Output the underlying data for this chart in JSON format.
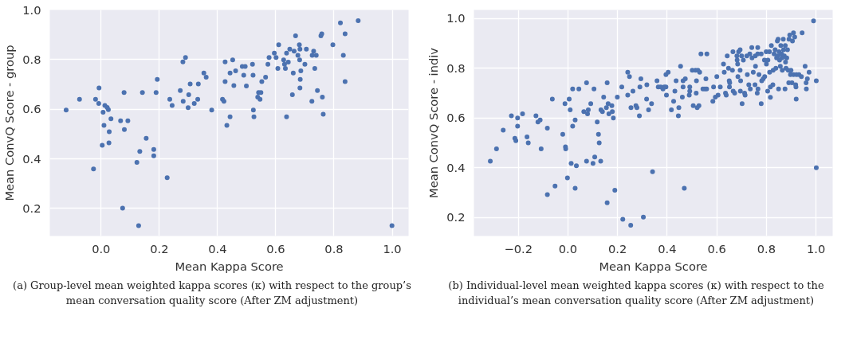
{
  "chart_data": [
    {
      "type": "scatter",
      "xlabel": "Mean Kappa Score",
      "ylabel": "Mean ConvQ Score - group",
      "xlim": [
        -0.176,
        1.056
      ],
      "ylim": [
        0.089,
        1.0
      ],
      "xticks": [
        {
          "value": 0,
          "label": "0.0"
        },
        0.2,
        0.4,
        0.6,
        0.8,
        {
          "value": 1,
          "label": "1.0"
        }
      ],
      "yticks": [
        0.2,
        0.4,
        0.6,
        0.8,
        {
          "value": 1,
          "label": "1.0"
        }
      ],
      "grid": true,
      "marker": "circle",
      "annotations": [
        "(a) Group-level mean weighted kappa scores (κ) with respect to the group’s mean conversation quality score (After ZM adjustment)"
      ],
      "series": [
        {
          "color": "#4c72b0",
          "x": [
            -0.12,
            -0.074,
            -0.019,
            -0.007,
            -0.008,
            -0.026,
            0.013,
            0.021,
            0.025,
            0.007,
            0.034,
            0.01,
            0.028,
            0.004,
            0.027,
            0.079,
            0.067,
            0.092,
            0.08,
            0.074,
            0.142,
            0.155,
            0.133,
            0.123,
            0.129,
            0.181,
            0.181,
            0.189,
            0.193,
            0.227,
            0.236,
            0.244,
            0.272,
            0.281,
            0.29,
            0.282,
            0.299,
            0.301,
            0.306,
            0.32,
            0.332,
            0.334,
            0.353,
            0.361,
            0.38,
            0.417,
            0.422,
            0.426,
            0.426,
            0.432,
            0.443,
            0.443,
            0.452,
            0.456,
            0.462,
            0.485,
            0.495,
            0.49,
            0.499,
            0.52,
            0.522,
            0.523,
            0.525,
            0.538,
            0.541,
            0.549,
            0.546,
            0.552,
            0.565,
            0.573,
            0.577,
            0.595,
            0.601,
            0.607,
            0.61,
            0.627,
            0.63,
            0.633,
            0.637,
            0.637,
            0.643,
            0.648,
            0.657,
            0.66,
            0.663,
            0.668,
            0.676,
            0.681,
            0.683,
            0.682,
            0.686,
            0.684,
            0.683,
            0.7,
            0.705,
            0.725,
            0.73,
            0.739,
            0.724,
            0.734,
            0.743,
            0.755,
            0.758,
            0.76,
            0.763,
            0.796,
            0.822,
            0.832,
            0.838,
            0.838,
            0.883,
            0.999
          ],
          "values": [
            0.597,
            0.64,
            0.64,
            0.686,
            0.623,
            0.359,
            0.615,
            0.607,
            0.598,
            0.588,
            0.561,
            0.535,
            0.509,
            0.455,
            0.464,
            0.667,
            0.553,
            0.553,
            0.518,
            0.201,
            0.667,
            0.483,
            0.43,
            0.386,
            0.131,
            0.438,
            0.412,
            0.667,
            0.72,
            0.324,
            0.64,
            0.615,
            0.675,
            0.791,
            0.808,
            0.632,
            0.606,
            0.658,
            0.702,
            0.623,
            0.64,
            0.702,
            0.746,
            0.729,
            0.597,
            0.64,
            0.632,
            0.711,
            0.791,
            0.535,
            0.569,
            0.746,
            0.799,
            0.695,
            0.755,
            0.772,
            0.772,
            0.737,
            0.694,
            0.781,
            0.737,
            0.597,
            0.569,
            0.649,
            0.667,
            0.667,
            0.64,
            0.711,
            0.729,
            0.781,
            0.808,
            0.826,
            0.808,
            0.764,
            0.86,
            0.799,
            0.781,
            0.764,
            0.826,
            0.569,
            0.79,
            0.842,
            0.658,
            0.746,
            0.834,
            0.896,
            0.817,
            0.86,
            0.842,
            0.799,
            0.755,
            0.72,
            0.686,
            0.781,
            0.842,
            0.817,
            0.834,
            0.817,
            0.632,
            0.764,
            0.675,
            0.896,
            0.904,
            0.649,
            0.58,
            0.86,
            0.948,
            0.817,
            0.904,
            0.711,
            0.957,
            0.131
          ]
        }
      ]
    },
    {
      "type": "scatter",
      "xlabel": "Mean Kappa Score",
      "ylabel": "Mean ConvQ Score - indiv",
      "xlim": [
        -0.379,
        1.067
      ],
      "ylim": [
        0.125,
        1.035
      ],
      "xticks": [
        {
          "value": -0.2,
          "label": "−0.2"
        },
        {
          "value": 0,
          "label": "0.0"
        },
        0.2,
        0.4,
        0.6,
        0.8,
        {
          "value": 1,
          "label": "1.0"
        }
      ],
      "yticks": [
        0.2,
        0.4,
        0.6,
        0.8,
        {
          "value": 1,
          "label": "1.0"
        }
      ],
      "grid": true,
      "marker": "circle",
      "annotations": [
        "(b) Individual-level mean weighted kappa scores (κ) with respect to the individual’s mean conversation quality score (After ZM adjustment)"
      ],
      "series": [
        {
          "color": "#4c72b0",
          "x": [
            -0.313,
            -0.288,
            -0.261,
            -0.228,
            -0.214,
            -0.21,
            -0.203,
            -0.203,
            -0.183,
            -0.165,
            -0.16,
            -0.129,
            -0.121,
            -0.112,
            -0.108,
            -0.083,
            -0.083,
            -0.063,
            -0.052,
            -0.021,
            -0.012,
            -0.01,
            -0.009,
            -0.002,
            0.005,
            0.009,
            0.013,
            0.019,
            0.019,
            0.029,
            0.029,
            0.034,
            0.044,
            0.064,
            0.075,
            0.075,
            0.079,
            0.082,
            0.092,
            0.101,
            0.105,
            0.108,
            0.118,
            0.123,
            0.126,
            0.132,
            0.133,
            0.139,
            0.144,
            0.155,
            0.158,
            0.158,
            0.162,
            0.165,
            0.177,
            0.179,
            0.183,
            0.189,
            0.199,
            0.217,
            0.221,
            0.241,
            0.241,
            0.248,
            0.254,
            0.253,
            0.262,
            0.274,
            0.278,
            0.288,
            0.29,
            0.294,
            0.304,
            0.317,
            0.318,
            0.325,
            0.337,
            0.341,
            0.359,
            0.364,
            0.374,
            0.383,
            0.388,
            0.395,
            0.397,
            0.395,
            0.404,
            0.417,
            0.426,
            0.431,
            0.436,
            0.445,
            0.447,
            0.454,
            0.461,
            0.464,
            0.464,
            0.469,
            0.473,
            0.489,
            0.491,
            0.491,
            0.501,
            0.505,
            0.514,
            0.517,
            0.518,
            0.521,
            0.524,
            0.528,
            0.531,
            0.536,
            0.544,
            0.552,
            0.556,
            0.559,
            0.56,
            0.584,
            0.587,
            0.594,
            0.6,
            0.605,
            0.614,
            0.627,
            0.63,
            0.635,
            0.638,
            0.642,
            0.647,
            0.65,
            0.651,
            0.652,
            0.665,
            0.663,
            0.666,
            0.672,
            0.681,
            0.682,
            0.684,
            0.685,
            0.688,
            0.694,
            0.694,
            0.695,
            0.696,
            0.702,
            0.7,
            0.707,
            0.712,
            0.714,
            0.721,
            0.723,
            0.729,
            0.733,
            0.735,
            0.741,
            0.742,
            0.747,
            0.754,
            0.755,
            0.756,
            0.763,
            0.765,
            0.765,
            0.766,
            0.77,
            0.779,
            0.779,
            0.781,
            0.787,
            0.792,
            0.793,
            0.799,
            0.8,
            0.805,
            0.806,
            0.812,
            0.813,
            0.816,
            0.816,
            0.82,
            0.826,
            0.827,
            0.831,
            0.835,
            0.838,
            0.841,
            0.844,
            0.846,
            0.847,
            0.849,
            0.851,
            0.853,
            0.856,
            0.858,
            0.861,
            0.863,
            0.864,
            0.868,
            0.869,
            0.872,
            0.875,
            0.876,
            0.877,
            0.879,
            0.882,
            0.885,
            0.888,
            0.89,
            0.891,
            0.894,
            0.897,
            0.899,
            0.903,
            0.905,
            0.909,
            0.909,
            0.914,
            0.918,
            0.919,
            0.92,
            0.921,
            0.931,
            0.941,
            0.944,
            0.956,
            0.96,
            0.961,
            0.965,
            0.972,
            0.99,
            1.001,
            1.001
          ],
          "values": [
            0.426,
            0.476,
            0.551,
            0.609,
            0.518,
            0.509,
            0.6,
            0.567,
            0.617,
            0.524,
            0.5,
            0.609,
            0.584,
            0.592,
            0.476,
            0.559,
            0.292,
            0.676,
            0.326,
            0.534,
            0.658,
            0.484,
            0.476,
            0.359,
            0.676,
            0.633,
            0.417,
            0.717,
            0.567,
            0.592,
            0.317,
            0.408,
            0.717,
            0.626,
            0.742,
            0.426,
            0.617,
            0.633,
            0.658,
            0.417,
            0.717,
            0.443,
            0.584,
            0.534,
            0.5,
            0.426,
            0.633,
            0.626,
            0.684,
            0.642,
            0.742,
            0.259,
            0.658,
            0.617,
            0.65,
            0.626,
            0.6,
            0.309,
            0.684,
            0.725,
            0.192,
            0.784,
            0.692,
            0.767,
            0.642,
            0.168,
            0.708,
            0.65,
            0.642,
            0.609,
            0.725,
            0.758,
            0.201,
            0.676,
            0.734,
            0.633,
            0.658,
            0.384,
            0.75,
            0.725,
            0.725,
            0.717,
            0.725,
            0.725,
            0.692,
            0.775,
            0.784,
            0.633,
            0.667,
            0.708,
            0.75,
            0.609,
            0.642,
            0.808,
            0.684,
            0.75,
            0.725,
            0.317,
            0.758,
            0.692,
            0.725,
            0.708,
            0.792,
            0.65,
            0.792,
            0.7,
            0.75,
            0.642,
            0.792,
            0.65,
            0.784,
            0.858,
            0.717,
            0.717,
            0.758,
            0.717,
            0.858,
            0.667,
            0.725,
            0.684,
            0.767,
            0.692,
            0.725,
            0.817,
            0.784,
            0.7,
            0.692,
            0.85,
            0.8,
            0.75,
            0.725,
            0.742,
            0.867,
            0.792,
            0.708,
            0.7,
            0.85,
            0.833,
            0.817,
            0.767,
            0.867,
            0.875,
            0.792,
            0.708,
            0.75,
            0.658,
            0.85,
            0.833,
            0.7,
            0.692,
            0.85,
            0.775,
            0.734,
            0.858,
            0.717,
            0.884,
            0.842,
            0.784,
            0.734,
            0.85,
            0.808,
            0.7,
            0.884,
            0.858,
            0.717,
            0.775,
            0.658,
            0.858,
            0.75,
            0.758,
            0.833,
            0.767,
            0.867,
            0.817,
            0.708,
            0.833,
            0.867,
            0.784,
            0.683,
            0.725,
            0.892,
            0.734,
            0.792,
            0.858,
            0.875,
            0.8,
            0.842,
            0.91,
            0.85,
            0.917,
            0.717,
            0.867,
            0.833,
            0.808,
            0.892,
            0.858,
            0.842,
            0.792,
            0.917,
            0.875,
            0.85,
            0.717,
            0.892,
            0.825,
            0.8,
            0.842,
            0.875,
            0.792,
            0.742,
            0.917,
            0.934,
            0.775,
            0.792,
            0.742,
            0.91,
            0.943,
            0.775,
            0.926,
            0.734,
            0.725,
            0.676,
            0.775,
            0.775,
            0.767,
            0.943,
            0.808,
            0.742,
            0.717,
            0.758,
            0.784,
            0.991,
            0.75,
            0.4
          ]
        }
      ]
    }
  ]
}
